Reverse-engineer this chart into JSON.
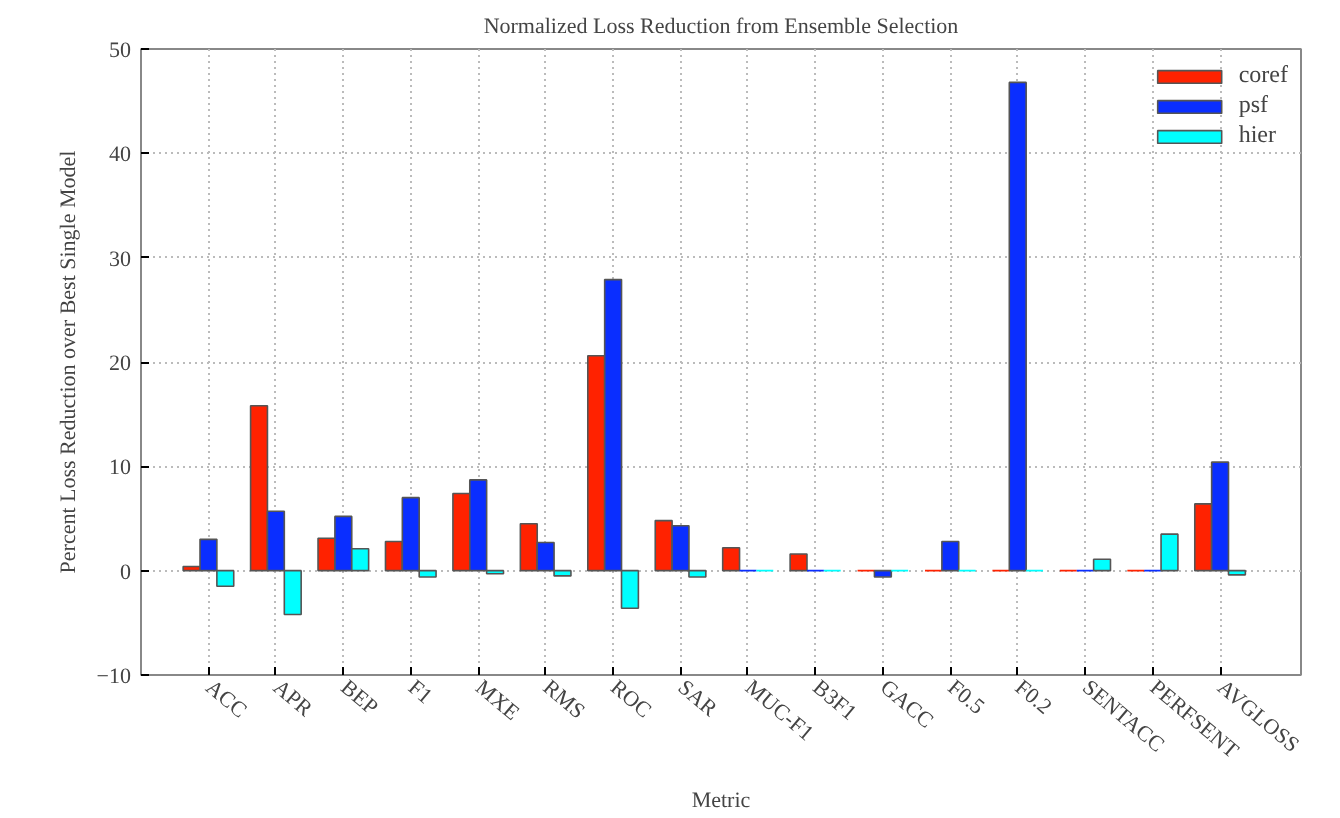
{
  "chart_data": {
    "type": "bar",
    "title": "Normalized Loss Reduction from Ensemble Selection",
    "xlabel": "Metric",
    "ylabel": "Percent Loss Reduction over Best Single Model",
    "categories": [
      "ACC",
      "APR",
      "BEP",
      "F1",
      "MXE",
      "RMS",
      "ROC",
      "SAR",
      "MUC-F1",
      "B3F1",
      "GACC",
      "F0.5",
      "F0.2",
      "SENTACC",
      "PERFSENT",
      "AVGLOSS"
    ],
    "series": [
      {
        "name": "coref",
        "color": "#ff2200",
        "values": [
          0.4,
          15.8,
          3.1,
          2.8,
          7.4,
          4.5,
          20.6,
          4.8,
          2.2,
          1.6,
          0,
          0,
          0,
          0,
          0,
          6.4
        ]
      },
      {
        "name": "psf",
        "color": "#0a2eff",
        "values": [
          3.0,
          5.7,
          5.2,
          7.0,
          8.7,
          2.7,
          27.9,
          4.3,
          0,
          0,
          -0.6,
          2.8,
          46.8,
          0,
          0,
          10.4
        ]
      },
      {
        "name": "hier",
        "color": "#00ffff",
        "values": [
          -1.5,
          -4.2,
          2.1,
          -0.6,
          -0.3,
          -0.5,
          -3.6,
          -0.6,
          0,
          0,
          0,
          0,
          0,
          1.1,
          3.5,
          -0.4
        ]
      }
    ],
    "ylim": [
      -10,
      50
    ],
    "yticks": [
      -10,
      0,
      10,
      20,
      30,
      40,
      50
    ],
    "grid": true,
    "legend": "top right"
  }
}
